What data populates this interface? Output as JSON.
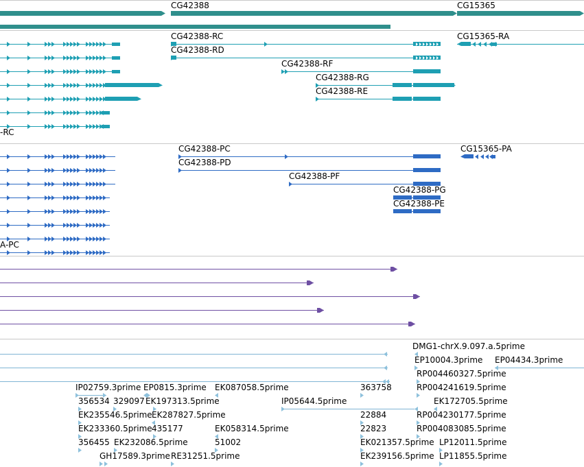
{
  "tracks": {
    "genes": {
      "color": "#2f8f8c",
      "items": [
        {
          "label": "CG42388"
        },
        {
          "label": "CG15365"
        }
      ]
    },
    "transcripts": {
      "color": "#1e9fb3",
      "items": [
        {
          "label": "CG42388-RC"
        },
        {
          "label": "CG42388-RD"
        },
        {
          "label": "CG42388-RF"
        },
        {
          "label": "CG42388-RG"
        },
        {
          "label": "CG42388-RE"
        },
        {
          "label": "CG15365-RA"
        },
        {
          "label": "-RC"
        }
      ]
    },
    "proteins": {
      "color": "#2e6bc4",
      "items": [
        {
          "label": "CG42388-PC"
        },
        {
          "label": "CG42388-PD"
        },
        {
          "label": "CG42388-PF"
        },
        {
          "label": "CG42388-PG"
        },
        {
          "label": "CG42388-PE"
        },
        {
          "label": "CG15365-PA"
        },
        {
          "label": "A-PC"
        }
      ]
    },
    "alignments": {
      "color": "#6e4fa3"
    },
    "ests": {
      "color": "#8ec1dc",
      "line_color": "#7fb4d4",
      "items": [
        {
          "label": "DMG1-chrX.9.097.a.5prime"
        },
        {
          "label": "EP10004.3prime"
        },
        {
          "label": "EP04434.3prime"
        },
        {
          "label": "RP004460327.5prime"
        },
        {
          "label": "IP02759.3prime"
        },
        {
          "label": "EP0815.3prime"
        },
        {
          "label": "EK087058.5prime"
        },
        {
          "label": "363758"
        },
        {
          "label": "RP004241619.5prime"
        },
        {
          "label": "356534"
        },
        {
          "label": "329097"
        },
        {
          "label": "EK197313.5prime"
        },
        {
          "label": "IP05644.5prime"
        },
        {
          "label": "EK172705.5prime"
        },
        {
          "label": "EK235546.5prime"
        },
        {
          "label": "EK287827.5prime"
        },
        {
          "label": "22884"
        },
        {
          "label": "RP004230177.5prime"
        },
        {
          "label": "EK233360.5prime"
        },
        {
          "label": "435177"
        },
        {
          "label": "EK058314.5prime"
        },
        {
          "label": "22823"
        },
        {
          "label": "RP004083085.5prime"
        },
        {
          "label": "356455"
        },
        {
          "label": "EK232086.5prime"
        },
        {
          "label": "51002"
        },
        {
          "label": "EK021357.5prime"
        },
        {
          "label": "LP12011.5prime"
        },
        {
          "label": "GH17589.3prime"
        },
        {
          "label": "RE31251.5prime"
        },
        {
          "label": "EK239156.5prime"
        },
        {
          "label": "LP11855.5prime"
        }
      ]
    }
  }
}
